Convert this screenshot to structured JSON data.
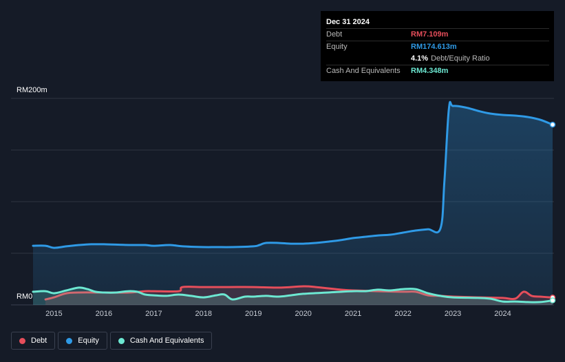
{
  "tooltip": {
    "date": "Dec 31 2024",
    "debt_label": "Debt",
    "debt_value": "RM7.109m",
    "equity_label": "Equity",
    "equity_value": "RM174.613m",
    "ratio_value": "4.1%",
    "ratio_label": "Debt/Equity Ratio",
    "cash_label": "Cash And Equivalents",
    "cash_value": "RM4.348m"
  },
  "colors": {
    "debt": "#e64e5b",
    "equity": "#2f9ae6",
    "cash": "#6de8d2",
    "background": "#151b27",
    "grid": "#2e3440"
  },
  "legend": [
    {
      "label": "Debt",
      "color": "#e64e5b"
    },
    {
      "label": "Equity",
      "color": "#2f9ae6"
    },
    {
      "label": "Cash And Equivalents",
      "color": "#6de8d2"
    }
  ],
  "chart_data": {
    "type": "line",
    "title": "",
    "xlabel": "",
    "ylabel": "",
    "y_top_label": "RM200m",
    "y_bottom_label": "RM0",
    "ylim": [
      0,
      200
    ],
    "xlim": [
      2014.58,
      2025.0
    ],
    "x_ticks": [
      "2015",
      "2016",
      "2017",
      "2018",
      "2019",
      "2020",
      "2021",
      "2022",
      "2023",
      "2024"
    ],
    "grid": true,
    "legend_position": "bottom-left",
    "series": [
      {
        "name": "Equity",
        "x": [
          2014.58,
          2014.83,
          2015.0,
          2015.25,
          2015.5,
          2015.75,
          2016.0,
          2016.5,
          2016.83,
          2017.0,
          2017.33,
          2017.58,
          2018.0,
          2018.25,
          2018.58,
          2019.0,
          2019.12,
          2019.25,
          2019.5,
          2019.75,
          2020.0,
          2020.25,
          2020.5,
          2020.75,
          2021.0,
          2021.25,
          2021.5,
          2021.75,
          2022.0,
          2022.25,
          2022.5,
          2022.75,
          2022.83,
          2022.92,
          2023.0,
          2023.25,
          2023.5,
          2023.75,
          2024.0,
          2024.25,
          2024.5,
          2024.75,
          2025.0
        ],
        "values": [
          57.3,
          57.3,
          55.3,
          56.7,
          58.0,
          58.7,
          58.7,
          58.0,
          58.0,
          57.3,
          58.0,
          56.7,
          56.0,
          56.0,
          56.0,
          56.7,
          58.0,
          60.0,
          60.0,
          59.3,
          59.3,
          60.0,
          61.3,
          62.7,
          64.7,
          66.0,
          67.3,
          68.0,
          70.0,
          72.0,
          73.3,
          74.0,
          120.0,
          190.0,
          192.7,
          191.3,
          188.0,
          185.3,
          184.0,
          183.3,
          182.0,
          179.3,
          174.6
        ]
      },
      {
        "name": "Debt",
        "x": [
          2014.83,
          2015.0,
          2015.25,
          2015.5,
          2016.0,
          2016.5,
          2016.83,
          2017.0,
          2017.5,
          2017.58,
          2018.0,
          2018.5,
          2019.0,
          2019.5,
          2020.0,
          2020.25,
          2020.5,
          2020.75,
          2021.0,
          2021.5,
          2022.0,
          2022.25,
          2022.5,
          2022.75,
          2023.0,
          2023.5,
          2024.0,
          2024.25,
          2024.42,
          2024.58,
          2024.75,
          2025.0
        ],
        "values": [
          5.3,
          7.3,
          11.3,
          12.0,
          12.0,
          12.0,
          13.3,
          13.3,
          13.3,
          17.3,
          17.3,
          17.3,
          17.3,
          16.7,
          18.0,
          17.3,
          16.0,
          14.7,
          14.0,
          13.3,
          12.7,
          12.7,
          9.3,
          8.7,
          8.0,
          7.3,
          6.7,
          6.0,
          12.7,
          8.7,
          8.0,
          7.1
        ]
      },
      {
        "name": "Cash And Equivalents",
        "x": [
          2014.58,
          2014.83,
          2015.0,
          2015.25,
          2015.5,
          2015.67,
          2015.83,
          2016.0,
          2016.25,
          2016.5,
          2016.67,
          2016.83,
          2017.0,
          2017.25,
          2017.5,
          2017.75,
          2018.0,
          2018.25,
          2018.42,
          2018.58,
          2018.83,
          2019.0,
          2019.25,
          2019.5,
          2019.75,
          2020.0,
          2020.5,
          2021.0,
          2021.25,
          2021.5,
          2021.75,
          2022.0,
          2022.25,
          2022.5,
          2022.75,
          2023.0,
          2023.5,
          2023.75,
          2024.0,
          2024.25,
          2024.5,
          2024.75,
          2025.0
        ],
        "values": [
          12.7,
          13.3,
          11.3,
          14.0,
          16.7,
          15.3,
          12.7,
          12.0,
          12.0,
          13.3,
          12.7,
          10.0,
          9.3,
          8.7,
          10.0,
          8.7,
          7.3,
          9.3,
          10.0,
          5.3,
          8.0,
          8.0,
          8.7,
          8.0,
          9.3,
          10.7,
          12.0,
          13.3,
          13.3,
          14.7,
          14.0,
          15.3,
          15.3,
          11.3,
          8.7,
          7.3,
          6.7,
          6.0,
          3.3,
          3.3,
          2.7,
          2.7,
          4.3
        ]
      }
    ]
  }
}
